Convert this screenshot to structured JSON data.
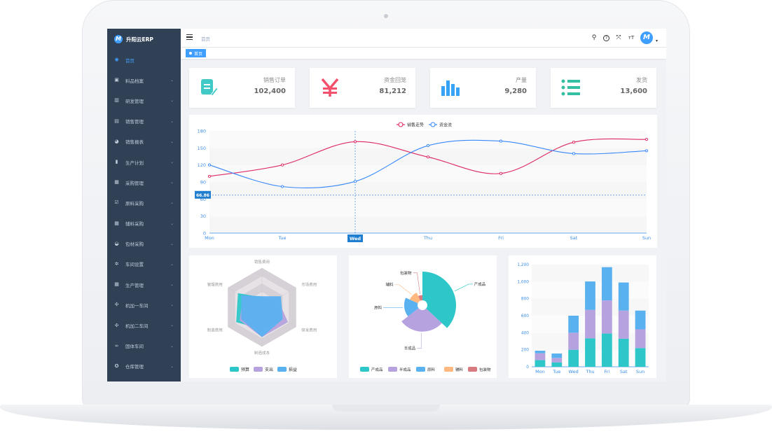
{
  "app": {
    "logo_text": "升阳云ERP"
  },
  "sidebar": {
    "items": [
      {
        "label": "首页",
        "icon": "dashboard-icon",
        "glyph": "◉",
        "active": true,
        "arrow": false
      },
      {
        "label": "料品档案",
        "icon": "archive-icon",
        "glyph": "▣",
        "active": false,
        "arrow": true
      },
      {
        "label": "研发管理",
        "icon": "research-icon",
        "glyph": "▥",
        "active": false,
        "arrow": true
      },
      {
        "label": "销售管理",
        "icon": "document-icon",
        "glyph": "▤",
        "active": false,
        "arrow": true
      },
      {
        "label": "销售报表",
        "icon": "chart-pie-icon",
        "glyph": "◕",
        "active": false,
        "arrow": true
      },
      {
        "label": "生产计划",
        "icon": "bar-chart-icon",
        "glyph": "▮",
        "active": false,
        "arrow": true
      },
      {
        "label": "采购管理",
        "icon": "list-icon",
        "glyph": "▦",
        "active": false,
        "arrow": true
      },
      {
        "label": "原料采购",
        "icon": "checkbox-icon",
        "glyph": "☑",
        "active": false,
        "arrow": true
      },
      {
        "label": "辅料采购",
        "icon": "clipboard-icon",
        "glyph": "▦",
        "active": false,
        "arrow": true
      },
      {
        "label": "包材采购",
        "icon": "dashboard-gauge-icon",
        "glyph": "◒",
        "active": false,
        "arrow": true
      },
      {
        "label": "车间设置",
        "icon": "gear-icon",
        "glyph": "✲",
        "active": false,
        "arrow": true
      },
      {
        "label": "生产管理",
        "icon": "table-icon",
        "glyph": "▦",
        "active": false,
        "arrow": true
      },
      {
        "label": "机加一车间",
        "icon": "move-icon",
        "glyph": "✣",
        "active": false,
        "arrow": true
      },
      {
        "label": "机加二车间",
        "icon": "move-icon",
        "glyph": "✣",
        "active": false,
        "arrow": true
      },
      {
        "label": "固体车间",
        "icon": "link-icon",
        "glyph": "∞",
        "active": false,
        "arrow": true
      },
      {
        "label": "仓库管理",
        "icon": "settings-circle-icon",
        "glyph": "✪",
        "active": false,
        "arrow": true
      }
    ]
  },
  "header": {
    "breadcrumb": "首页",
    "icons": [
      "search-icon",
      "help-icon",
      "fullscreen-icon",
      "font-size-icon"
    ],
    "icon_glyphs": [
      "⚲",
      "?",
      "⤧",
      "тT"
    ]
  },
  "tags": {
    "active": "首页"
  },
  "stats": [
    {
      "label": "销售订单",
      "value": "102,400",
      "color": "#36a3f7",
      "icon": "order-icon"
    },
    {
      "label": "资金回笼",
      "value": "81,212",
      "color": "#f4516c",
      "icon": "yen-icon"
    },
    {
      "label": "产量",
      "value": "9,280",
      "color": "#40c9c6",
      "icon": "bar-chart-icon"
    },
    {
      "label": "发货",
      "value": "13,600",
      "color": "#34bfa3",
      "icon": "list-icon"
    }
  ],
  "chart_data": [
    {
      "type": "line",
      "x": [
        "Mon",
        "Tue",
        "Wed",
        "Thu",
        "Fri",
        "Sat",
        "Sun"
      ],
      "series": [
        {
          "name": "销售走势",
          "values": [
            100,
            120,
            161,
            134,
            105,
            160,
            165
          ],
          "color": "#dd2a61"
        },
        {
          "name": "资金流",
          "values": [
            120,
            82,
            91,
            154,
            162,
            140,
            145
          ],
          "color": "#3888fa"
        }
      ],
      "ylim": [
        0,
        180
      ],
      "yticks": [
        0,
        30,
        60,
        90,
        120,
        150,
        180
      ],
      "legend": "top-center",
      "tooltip": {
        "category": "Wed",
        "y_label": "66.86",
        "y": 66.86
      }
    },
    {
      "type": "radar",
      "indicators": [
        "销售费用",
        "市场费用",
        "研发费用",
        "制造成本",
        "制造费用",
        "管理费用"
      ],
      "max": 20000,
      "series": [
        {
          "name": "预算",
          "values": [
            5000,
            7000,
            12000,
            11000,
            15000,
            14000
          ],
          "color": "#2ec7c9"
        },
        {
          "name": "支出",
          "values": [
            4000,
            9000,
            15000,
            15000,
            13000,
            11000
          ],
          "color": "#b6a2de"
        },
        {
          "name": "损益",
          "values": [
            5500,
            11000,
            12000,
            15000,
            12000,
            12000
          ],
          "color": "#5ab1ef"
        }
      ],
      "legend": "bottom-center"
    },
    {
      "type": "pie",
      "rose": true,
      "slices": [
        {
          "name": "产成品",
          "value": 320,
          "color": "#2ec7c9"
        },
        {
          "name": "半成品",
          "value": 240,
          "color": "#b6a2de"
        },
        {
          "name": "原料",
          "value": 149,
          "color": "#5ab1ef"
        },
        {
          "name": "辅料",
          "value": 100,
          "color": "#ffb980"
        },
        {
          "name": "包装物",
          "value": 59,
          "color": "#d87a80"
        }
      ],
      "legend": "bottom-center"
    },
    {
      "type": "bar",
      "stacked": true,
      "categories": [
        "Mon",
        "Tue",
        "Wed",
        "Thu",
        "Fri",
        "Sat",
        "Sun"
      ],
      "series": [
        {
          "name": "",
          "values": [
            79,
            52,
            200,
            334,
            390,
            330,
            220
          ],
          "color": "#2ec7c9"
        },
        {
          "name": "",
          "values": [
            80,
            52,
            200,
            334,
            390,
            330,
            220
          ],
          "color": "#b6a2de"
        },
        {
          "name": "",
          "values": [
            30,
            52,
            200,
            334,
            390,
            330,
            220
          ],
          "color": "#5ab1ef"
        }
      ],
      "ylim": [
        0,
        1200
      ],
      "yticks": [
        0,
        200,
        400,
        600,
        800,
        1000,
        1200
      ],
      "ytick_labels": [
        "0",
        "200",
        "400",
        "600",
        "800",
        "1,000",
        "1,200"
      ]
    }
  ]
}
